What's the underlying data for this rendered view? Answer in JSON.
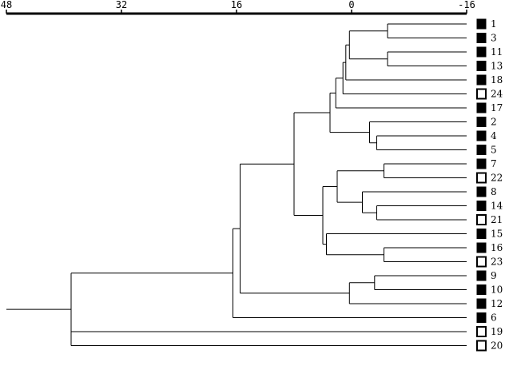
{
  "axis": {
    "ticks": [
      48,
      32,
      16,
      0,
      -16
    ],
    "min": 48,
    "max": -16
  },
  "leaves": [
    {
      "id": "1",
      "marker": "filled"
    },
    {
      "id": "3",
      "marker": "filled"
    },
    {
      "id": "11",
      "marker": "filled"
    },
    {
      "id": "13",
      "marker": "filled"
    },
    {
      "id": "18",
      "marker": "filled"
    },
    {
      "id": "24",
      "marker": "open"
    },
    {
      "id": "17",
      "marker": "filled"
    },
    {
      "id": "2",
      "marker": "filled"
    },
    {
      "id": "4",
      "marker": "filled"
    },
    {
      "id": "5",
      "marker": "filled"
    },
    {
      "id": "7",
      "marker": "filled"
    },
    {
      "id": "22",
      "marker": "open"
    },
    {
      "id": "8",
      "marker": "filled"
    },
    {
      "id": "14",
      "marker": "filled"
    },
    {
      "id": "21",
      "marker": "open"
    },
    {
      "id": "15",
      "marker": "filled"
    },
    {
      "id": "16",
      "marker": "filled"
    },
    {
      "id": "23",
      "marker": "open"
    },
    {
      "id": "9",
      "marker": "filled"
    },
    {
      "id": "10",
      "marker": "filled"
    },
    {
      "id": "12",
      "marker": "filled"
    },
    {
      "id": "6",
      "marker": "filled"
    },
    {
      "id": "19",
      "marker": "open"
    },
    {
      "id": "20",
      "marker": "open"
    }
  ],
  "tree": {
    "h": 39,
    "children": [
      {
        "h": 16.5,
        "children": [
          {
            "h": 15.5,
            "children": [
              {
                "h": 8,
                "children": [
                  {
                    "h": 3,
                    "children": [
                      {
                        "h": 2.2,
                        "children": [
                          {
                            "h": 1.2,
                            "children": [
                              {
                                "h": 0.8,
                                "children": [
                                  {
                                    "h": 0.3,
                                    "children": [
                                      {
                                        "h": -5,
                                        "children": [
                                          {
                                            "leaf": "1"
                                          },
                                          {
                                            "leaf": "3"
                                          }
                                        ]
                                      },
                                      {
                                        "h": -5,
                                        "children": [
                                          {
                                            "leaf": "11"
                                          },
                                          {
                                            "leaf": "13"
                                          }
                                        ]
                                      }
                                    ]
                                  },
                                  {
                                    "leaf": "18"
                                  }
                                ]
                              },
                              {
                                "leaf": "24"
                              }
                            ]
                          },
                          {
                            "leaf": "17"
                          }
                        ]
                      },
                      {
                        "h": -2.5,
                        "children": [
                          {
                            "leaf": "2"
                          },
                          {
                            "h": -3.5,
                            "children": [
                              {
                                "leaf": "4"
                              },
                              {
                                "leaf": "5"
                              }
                            ]
                          }
                        ]
                      }
                    ]
                  },
                  {
                    "h": 4,
                    "children": [
                      {
                        "h": 2,
                        "children": [
                          {
                            "h": -4.5,
                            "children": [
                              {
                                "leaf": "7"
                              },
                              {
                                "leaf": "22"
                              }
                            ]
                          },
                          {
                            "h": -1.5,
                            "children": [
                              {
                                "leaf": "8"
                              },
                              {
                                "h": -3.5,
                                "children": [
                                  {
                                    "leaf": "14"
                                  },
                                  {
                                    "leaf": "21"
                                  }
                                ]
                              }
                            ]
                          }
                        ]
                      },
                      {
                        "h": 3.5,
                        "children": [
                          {
                            "leaf": "15"
                          },
                          {
                            "h": -4.5,
                            "children": [
                              {
                                "leaf": "16"
                              },
                              {
                                "leaf": "23"
                              }
                            ]
                          }
                        ]
                      }
                    ]
                  }
                ]
              },
              {
                "h": 0.3,
                "children": [
                  {
                    "h": -3.2,
                    "children": [
                      {
                        "leaf": "9"
                      },
                      {
                        "leaf": "10"
                      }
                    ]
                  },
                  {
                    "leaf": "12"
                  }
                ]
              }
            ]
          },
          {
            "leaf": "6"
          }
        ]
      },
      {
        "leaf": "19"
      },
      {
        "leaf": "20"
      }
    ]
  },
  "root_stub_h": 48
}
